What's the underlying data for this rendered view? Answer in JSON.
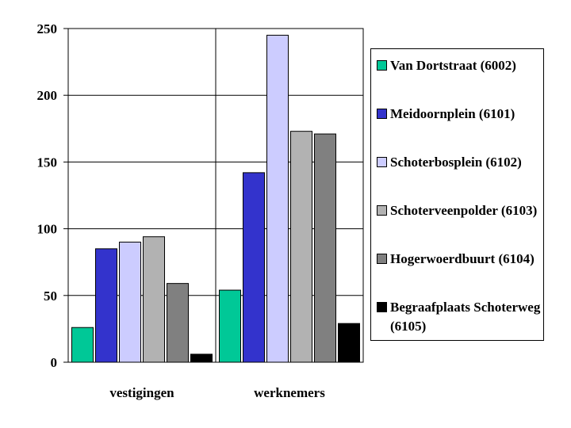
{
  "chart_data": {
    "type": "bar",
    "categories": [
      "vestigingen",
      "werknemers"
    ],
    "series": [
      {
        "name": "Van Dortstraat (6002)",
        "values": [
          26,
          54
        ],
        "color": "#00c897"
      },
      {
        "name": "Meidoornplein (6101)",
        "values": [
          85,
          142
        ],
        "color": "#3333cc"
      },
      {
        "name": "Schoterbosplein (6102)",
        "values": [
          90,
          245
        ],
        "color": "#ccccff"
      },
      {
        "name": "Schoterveenpolder (6103)",
        "values": [
          94,
          173
        ],
        "color": "#b2b2b2"
      },
      {
        "name": "Hogerwoerdbuurt (6104)",
        "values": [
          59,
          171
        ],
        "color": "#808080"
      },
      {
        "name": "Begraafplaats Schoterweg (6105)",
        "values": [
          6,
          29
        ],
        "color": "#000000"
      }
    ],
    "ylim": [
      0,
      250
    ],
    "yticks": [
      "0",
      "50",
      "100",
      "150",
      "200",
      "250"
    ],
    "grid": true,
    "legend": "right"
  }
}
